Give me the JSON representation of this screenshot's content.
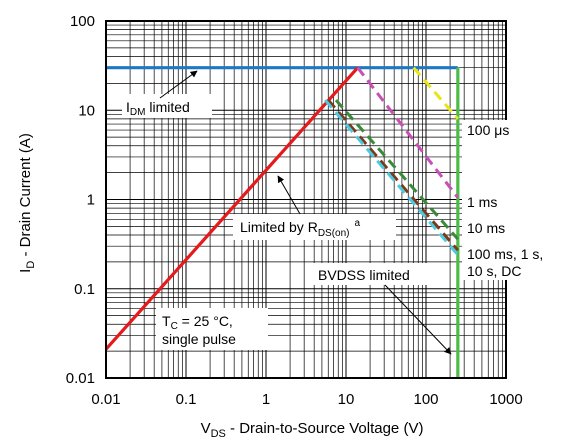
{
  "chart_data": {
    "type": "line",
    "xscale": "log",
    "yscale": "log",
    "xlim": [
      0.01,
      1000
    ],
    "ylim": [
      0.01,
      100
    ],
    "grid": true,
    "x_ticks": [
      "0.01",
      "0.1",
      "1",
      "10",
      "100",
      "1000"
    ],
    "y_ticks": [
      "0.01",
      "0.1",
      "1",
      "10",
      "100"
    ],
    "xlabel": {
      "main": "V",
      "sub": "DS",
      "rest": " - Drain-to-Source Voltage (V)"
    },
    "ylabel": {
      "main": "I",
      "sub": "D",
      "rest": " - Drain Current (A)"
    },
    "series": [
      {
        "key": "idm",
        "color": "#1f77c4",
        "dash": false,
        "x": [
          0.01,
          250
        ],
        "y": [
          30,
          30
        ]
      },
      {
        "key": "rdson",
        "color": "#e41a1c",
        "dash": false,
        "x": [
          0.01,
          14
        ],
        "y": [
          0.021,
          30
        ]
      },
      {
        "key": "bvdss",
        "color": "#4cbb47",
        "dash": false,
        "x": [
          250,
          250
        ],
        "y": [
          0.01,
          30
        ]
      },
      {
        "key": "p100us",
        "color": "#e6e619",
        "dash": true,
        "x": [
          70,
          250
        ],
        "y": [
          30,
          8
        ]
      },
      {
        "key": "p1ms",
        "color": "#c84fb4",
        "dash": true,
        "x": [
          14,
          250
        ],
        "y": [
          30,
          1.05
        ]
      },
      {
        "key": "p10ms",
        "color": "#3a8a3a",
        "dash": true,
        "x": [
          7.5,
          250
        ],
        "y": [
          13,
          0.36
        ]
      },
      {
        "key": "p100ms",
        "color": "#7a3a1a",
        "dash": true,
        "x": [
          6,
          250
        ],
        "y": [
          13,
          0.27
        ]
      },
      {
        "key": "pdc",
        "color": "#4ec9e0",
        "dash": true,
        "x": [
          5.5,
          250
        ],
        "y": [
          13,
          0.24
        ]
      }
    ],
    "annotations": {
      "idm": {
        "main": "I",
        "sub": "DM",
        "rest": " limited"
      },
      "p100us": "100 μs",
      "p1ms": "1 ms",
      "p10ms": "10 ms",
      "p100ms_line1": "100 ms, 1 s,",
      "p100ms_line2": "10 s, DC",
      "bvdss": "BVDSS limited",
      "rdson": {
        "main": "Limited by R",
        "sub": "DS(on)",
        "sup": "a"
      },
      "tc": {
        "main": "T",
        "sub": "C",
        "rest": " = 25 °C,",
        "line2": "single pulse"
      }
    }
  }
}
